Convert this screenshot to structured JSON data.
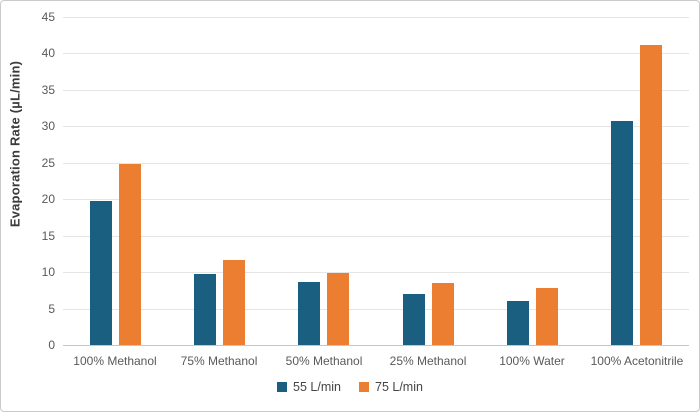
{
  "chart_data": {
    "type": "bar",
    "title": "",
    "xlabel": "",
    "ylabel": "Evaporation Rate (µL/min)",
    "ylim": [
      0,
      45
    ],
    "yticks": [
      0,
      5,
      10,
      15,
      20,
      25,
      30,
      35,
      40,
      45
    ],
    "grid": true,
    "legend_position": "bottom",
    "categories": [
      "100% Methanol",
      "75% Methanol",
      "50% Methanol",
      "25% Methanol",
      "100% Water",
      "100% Acetonitrile"
    ],
    "series": [
      {
        "name": "55 L/min",
        "color": "#1a5f80",
        "values": [
          19.8,
          9.7,
          8.6,
          7.0,
          6.1,
          30.8
        ]
      },
      {
        "name": "75 L/min",
        "color": "#ec7e31",
        "values": [
          24.8,
          11.7,
          9.9,
          8.5,
          7.8,
          41.1
        ]
      }
    ],
    "colors": {
      "gridline": "#e5e5e5",
      "axis_line": "#c6c6c6",
      "tick_text": "#595959",
      "axis_title_text": "#3b3b3b"
    }
  }
}
